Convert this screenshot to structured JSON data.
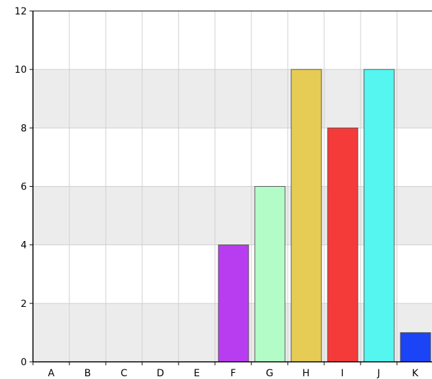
{
  "chart_data": {
    "type": "bar",
    "categories": [
      "A",
      "B",
      "C",
      "D",
      "E",
      "F",
      "G",
      "H",
      "I",
      "J",
      "K"
    ],
    "values": [
      0,
      0,
      0,
      0,
      0,
      4,
      6,
      10,
      8,
      10,
      1
    ],
    "colors": [
      "#999999",
      "#999999",
      "#999999",
      "#999999",
      "#999999",
      "#b83df0",
      "#b3fcc8",
      "#e6cc55",
      "#f53a3a",
      "#55f5f0",
      "#1a44f5"
    ],
    "ylim": [
      0,
      12
    ],
    "yticks": [
      0,
      2,
      4,
      6,
      8,
      10,
      12
    ],
    "grid": true,
    "legend": "none",
    "title": "",
    "xlabel": "",
    "ylabel": ""
  }
}
